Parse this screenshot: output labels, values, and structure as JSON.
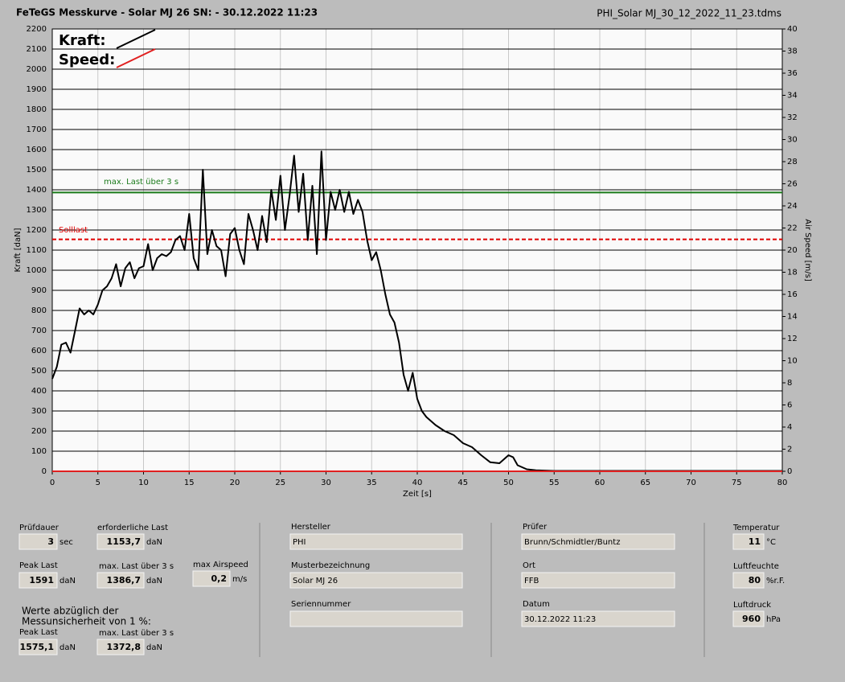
{
  "header": {
    "title": "FeTeGS Messkurve - Solar MJ 26  SN:  - 30.12.2022 11:23",
    "file": "PHI_Solar MJ_30_12_2022_11_23.tdms"
  },
  "chart_data": {
    "type": "line",
    "x_label": "Zeit [s]",
    "y_label": "Kraft [daN]",
    "y2_label": "Air Speed [m/s]",
    "xlim": [
      0,
      80
    ],
    "xticks": [
      0,
      5,
      10,
      15,
      20,
      25,
      30,
      35,
      40,
      45,
      50,
      55,
      60,
      65,
      70,
      75,
      80
    ],
    "ylim": [
      0,
      2200
    ],
    "yticks": [
      0,
      100,
      200,
      300,
      400,
      500,
      600,
      700,
      800,
      900,
      1000,
      1100,
      1200,
      1300,
      1400,
      1500,
      1600,
      1700,
      1800,
      1900,
      2000,
      2100,
      2200
    ],
    "y2lim": [
      0,
      40
    ],
    "y2ticks": [
      0,
      2,
      4,
      6,
      8,
      10,
      12,
      14,
      16,
      18,
      20,
      22,
      24,
      26,
      28,
      30,
      32,
      34,
      36,
      38,
      40
    ],
    "grid": true,
    "series": [
      {
        "name": "Kraft:",
        "color": "#000000",
        "x": [
          0,
          0.5,
          1,
          1.5,
          2,
          2.5,
          3,
          3.5,
          4,
          4.5,
          5,
          5.5,
          6,
          6.5,
          7,
          7.5,
          8,
          8.5,
          9,
          9.5,
          10,
          10.5,
          11,
          11.5,
          12,
          12.5,
          13,
          13.5,
          14,
          14.5,
          15,
          15.5,
          16,
          16.5,
          17,
          17.5,
          18,
          18.5,
          19,
          19.5,
          20,
          20.5,
          21,
          21.5,
          22,
          22.5,
          23,
          23.5,
          24,
          24.5,
          25,
          25.5,
          26,
          26.5,
          27,
          27.5,
          28,
          28.5,
          29,
          29.5,
          30,
          30.5,
          31,
          31.5,
          32,
          32.5,
          33,
          33.5,
          34,
          34.5,
          35,
          35.5,
          36,
          36.5,
          37,
          37.5,
          38,
          38.5,
          39,
          39.5,
          40,
          40.5,
          41,
          42,
          43,
          44,
          45,
          46,
          47,
          48,
          49,
          50,
          50.5,
          51,
          52,
          53,
          55,
          60,
          65,
          70,
          75,
          80
        ],
        "values": [
          460,
          520,
          630,
          640,
          590,
          700,
          810,
          780,
          800,
          780,
          830,
          900,
          920,
          960,
          1030,
          920,
          1010,
          1040,
          960,
          1010,
          1020,
          1130,
          1000,
          1060,
          1080,
          1070,
          1090,
          1150,
          1170,
          1100,
          1280,
          1060,
          1000,
          1500,
          1080,
          1200,
          1120,
          1100,
          970,
          1180,
          1210,
          1100,
          1030,
          1280,
          1200,
          1100,
          1270,
          1140,
          1400,
          1250,
          1470,
          1200,
          1370,
          1570,
          1290,
          1480,
          1150,
          1420,
          1080,
          1591,
          1150,
          1390,
          1300,
          1400,
          1290,
          1390,
          1280,
          1350,
          1290,
          1150,
          1050,
          1090,
          1000,
          880,
          780,
          740,
          640,
          480,
          400,
          490,
          360,
          300,
          270,
          230,
          200,
          180,
          140,
          120,
          80,
          45,
          40,
          80,
          70,
          30,
          10,
          5,
          2,
          2,
          2,
          2,
          2,
          2
        ]
      },
      {
        "name": "Speed:",
        "color": "#e02020",
        "axis": "y2",
        "x": [
          0,
          80
        ],
        "values": [
          0,
          0
        ]
      }
    ],
    "reference_lines": [
      {
        "label": "max. Last über  3 s",
        "value": 1386.7,
        "color": "#1a7a1a"
      },
      {
        "label": "Solllast",
        "value": 1153.7,
        "color": "#e00000",
        "dashed": true
      }
    ]
  },
  "panel": {
    "fields": [
      {
        "label": "Prüfdauer",
        "value": "3",
        "unit": "sec"
      },
      {
        "label": "erforderliche Last",
        "value": "1153,7",
        "unit": "daN"
      },
      {
        "label": "Peak Last",
        "value": "1591",
        "unit": "daN"
      },
      {
        "label": "max. Last über  3 s",
        "value": "1386,7",
        "unit": "daN"
      },
      {
        "label": "max Airspeed",
        "value": "0,2",
        "unit": "m/s"
      },
      {
        "label": "Peak Last",
        "value": "1575,1",
        "unit": "daN"
      },
      {
        "label": "max. Last über  3 s",
        "value": "1372,8",
        "unit": "daN"
      },
      {
        "label": "Hersteller",
        "value": "PHI"
      },
      {
        "label": "Musterbezeichnung",
        "value": "Solar MJ 26"
      },
      {
        "label": "Seriennummer"
      },
      {
        "label": "Prüfer",
        "value": "Brunn/Schmidtler/Buntz"
      },
      {
        "label": "Ort",
        "value": "FFB"
      },
      {
        "label": "Datum",
        "value": "30.12.2022 11:23"
      },
      {
        "label": "Temperatur",
        "value": "11",
        "unit": "°C"
      },
      {
        "label": "Luftfeuchte",
        "value": "80",
        "unit": "%r.F."
      },
      {
        "label": "Luftdruck",
        "value": "960",
        "unit": "hPa"
      }
    ],
    "note": [
      "Werte abzüglich der",
      "Messunsicherheit von 1  %:"
    ]
  }
}
